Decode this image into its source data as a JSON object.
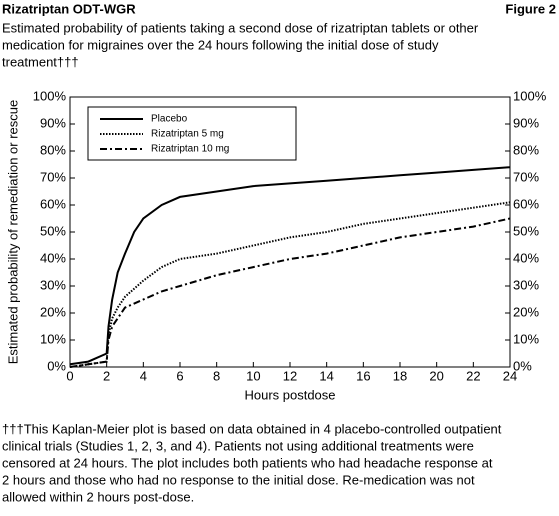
{
  "header": {
    "title": "Rizatriptan ODT-WGR",
    "figure": "Figure 2"
  },
  "subtitle_lines": [
    "Estimated probability of patients taking a second dose of rizatriptan tablets or other",
    "medication for migraines over the 24 hours following the initial dose of study",
    "treatment†††"
  ],
  "chart_data": {
    "type": "line",
    "x_label": "Hours postdose",
    "y_label": "Estimated probability of remediation or rescue",
    "x": [
      0,
      1,
      2,
      2.1,
      2.3,
      2.6,
      3,
      3.5,
      4,
      5,
      6,
      8,
      10,
      12,
      14,
      16,
      18,
      20,
      22,
      24
    ],
    "series": [
      {
        "name": "Placebo",
        "color": "#000000",
        "dash": "solid",
        "values": [
          1,
          2,
          5,
          15,
          25,
          35,
          42,
          50,
          55,
          60,
          63,
          65,
          67,
          68,
          69,
          70,
          71,
          72,
          73,
          74
        ]
      },
      {
        "name": "Rizatriptan  5 mg",
        "color": "#000000",
        "dash": "dotted",
        "values": [
          0,
          1,
          2,
          12,
          18,
          22,
          26,
          29,
          32,
          37,
          40,
          42,
          45,
          48,
          50,
          53,
          55,
          57,
          59,
          61
        ]
      },
      {
        "name": "Rizatriptan  10 mg",
        "color": "#000000",
        "dash": "dashdot",
        "values": [
          0,
          1,
          2,
          10,
          15,
          18,
          22,
          23.5,
          25,
          28,
          30,
          34,
          37,
          40,
          42,
          45,
          48,
          50,
          52,
          55
        ]
      }
    ],
    "xlim": [
      0,
      24
    ],
    "xticks": [
      0,
      2,
      4,
      6,
      8,
      10,
      12,
      14,
      16,
      18,
      20,
      22,
      24
    ],
    "ylim": [
      0,
      100
    ],
    "yticks": [
      {
        "value": 0,
        "label": "0%"
      },
      {
        "value": 10,
        "label": "10%"
      },
      {
        "value": 20,
        "label": "20%"
      },
      {
        "value": 30,
        "label": "30%"
      },
      {
        "value": 40,
        "label": "40%"
      },
      {
        "value": 50,
        "label": "50%"
      },
      {
        "value": 60,
        "label": "60%"
      },
      {
        "value": 70,
        "label": "70%"
      },
      {
        "value": 80,
        "label": "80%"
      },
      {
        "value": 90,
        "label": "90%"
      },
      {
        "value": 100,
        "label": "100%"
      }
    ],
    "legend": "upper left",
    "grid": false
  },
  "footnote_lines": [
    "†††This Kaplan-Meier plot is based on data obtained in 4 placebo-controlled outpatient",
    "clinical trials (Studies 1, 2, 3, and 4). Patients not using additional treatments were",
    "censored at 24 hours. The plot includes both patients who had headache response at",
    "2 hours and those who had no response to the initial dose. Re-medication was not",
    "allowed within 2 hours post-dose."
  ]
}
